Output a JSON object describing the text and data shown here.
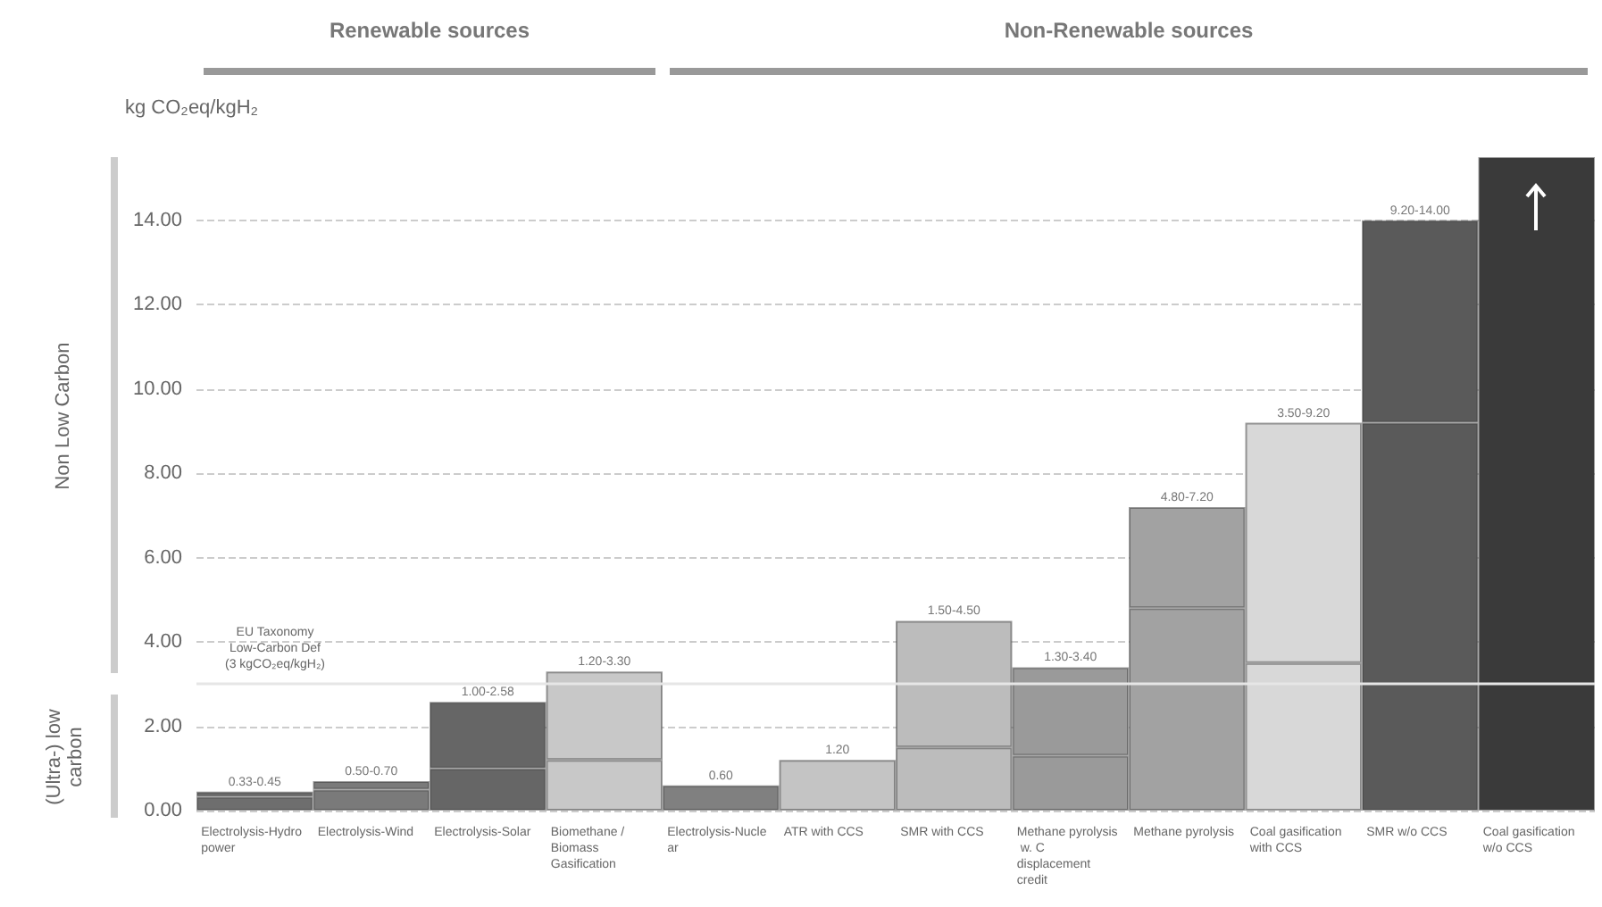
{
  "chart_data": {
    "type": "bar",
    "stacked": true,
    "ylabel": "kg CO₂eq/kgH₂",
    "categories": [
      "Electrolysis-Hydropower",
      "Electrolysis-Wind",
      "Electrolysis-Solar",
      "Biomethane / Biomass Gasification",
      "Electrolysis-Nuclear",
      "ATR with CCS",
      "SMR with CCS",
      "Methane pyrolysis w. C displacement credit",
      "Methane pyrolysis",
      "Coal gasification with CCS",
      "SMR w/o CCS",
      "Coal gasification w/o CCS"
    ],
    "series": [
      {
        "colors": [
          "#6e6e6e",
          "#7a7a7a",
          "#666666",
          "#c8c8c8",
          "#808080",
          "#c4c4c4",
          "#bcbcbc",
          "#9a9a9a",
          "#a2a2a2",
          "#d8d8d8",
          "#5a5a5a",
          "#3a3a3a"
        ],
        "values": [
          0.33,
          0.5,
          1.0,
          1.2,
          null,
          null,
          1.5,
          1.3,
          4.8,
          3.5,
          9.2,
          null
        ]
      },
      {
        "colors": [
          "#6e6e6e",
          "#7a7a7a",
          "#666666",
          "#c8c8c8",
          "#808080",
          "#c4c4c4",
          "#bcbcbc",
          "#9a9a9a",
          "#a2a2a2",
          "#d8d8d8",
          "#5a5a5a",
          "#3a3a3a"
        ],
        "values": [
          0.12,
          0.2,
          1.58,
          2.1,
          0.6,
          1.2,
          3.0,
          2.1,
          2.4,
          5.7,
          4.8,
          15.5
        ],
        "value_labels": [
          "0.33-0.45",
          "0.50-0.70",
          "1.00-2.58",
          "1.20-3.30",
          "0.60",
          "1.20",
          "1.50-4.50",
          "1.30-3.40",
          "4.80-7.20",
          "3.50-9.20",
          "9.20-14.00",
          null
        ]
      }
    ],
    "ylim": [
      0,
      15.5
    ],
    "yticks": [
      {
        "value": 0,
        "label": "0.00"
      },
      {
        "value": 2,
        "label": "2.00"
      },
      {
        "value": 4,
        "label": "4.00"
      },
      {
        "value": 6,
        "label": "6.00"
      },
      {
        "value": 8,
        "label": "8.00"
      },
      {
        "value": 10,
        "label": "10.00"
      },
      {
        "value": 12,
        "label": "12.00"
      },
      {
        "value": 14,
        "label": "14.00"
      }
    ],
    "grid": "y",
    "ref_lines": [
      {
        "axis": "y",
        "value": 3,
        "label": "EU Taxonomy\nLow-Carbon Def\n(3 kgCO₂eq/kgH₂)",
        "color": "#e6e6e6"
      }
    ],
    "annotations": [
      "Renewable sources",
      "Non-Renewable sources",
      "Non Low Carbon",
      "(Ultra-) low carbon"
    ]
  }
}
